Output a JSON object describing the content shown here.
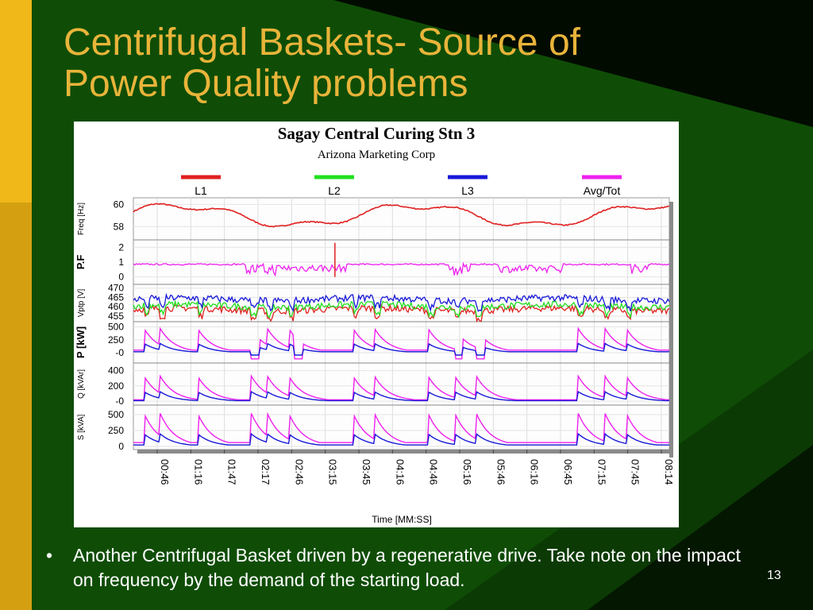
{
  "slide": {
    "title_line1": "Centrifugal Baskets- Source of",
    "title_line2": "Power Quality problems",
    "bullet_symbol": "•",
    "bullet_text": "Another Centrifugal Basket driven by a regenerative drive. Take note on the impact on frequency by the demand of the starting load.",
    "slide_number": "13",
    "colors": {
      "background": "#0f4d06",
      "title": "#e8b43a",
      "accent_gold": "#d4a012",
      "dark": "#000000"
    }
  },
  "chart_data": {
    "type": "line",
    "title": "Sagay Central Curing Stn 3",
    "subtitle": "Arizona Marketing Corp",
    "xlabel": "Time [MM:SS]",
    "x_ticks": [
      "00:46",
      "01:16",
      "01:47",
      "02:17",
      "02:46",
      "03:15",
      "03:45",
      "04:16",
      "04:46",
      "05:16",
      "05:46",
      "06:16",
      "06:45",
      "07:15",
      "07:45",
      "08:14"
    ],
    "legend": [
      {
        "name": "L1",
        "color": "#e02020"
      },
      {
        "name": "L2",
        "color": "#20e020"
      },
      {
        "name": "L3",
        "color": "#1818d8"
      },
      {
        "name": "Avg/Tot",
        "color": "#ee20ee"
      }
    ],
    "legend_position": "top",
    "grid": true,
    "panels": [
      {
        "ylabel": "Freq [Hz]",
        "yticks": [
          "60",
          "58"
        ],
        "ylim": [
          56.8,
          60.6
        ]
      },
      {
        "ylabel": "P.F",
        "yticks": [
          "2",
          "1",
          "0"
        ],
        "ylim": [
          -0.5,
          2.5
        ]
      },
      {
        "ylabel": "Vptp [V]",
        "yticks": [
          "470",
          "465",
          "460",
          "455"
        ],
        "ylim": [
          452,
          472
        ]
      },
      {
        "ylabel": "P [kW]",
        "yticks": [
          "500",
          "250",
          "-0"
        ],
        "ylim": [
          -200,
          600
        ]
      },
      {
        "ylabel": "Q [kVAr]",
        "yticks": [
          "400",
          "200",
          "-0"
        ],
        "ylim": [
          -50,
          500
        ]
      },
      {
        "ylabel": "S [kVA]",
        "yticks": [
          "500",
          "250",
          "0"
        ],
        "ylim": [
          -50,
          650
        ]
      }
    ]
  }
}
